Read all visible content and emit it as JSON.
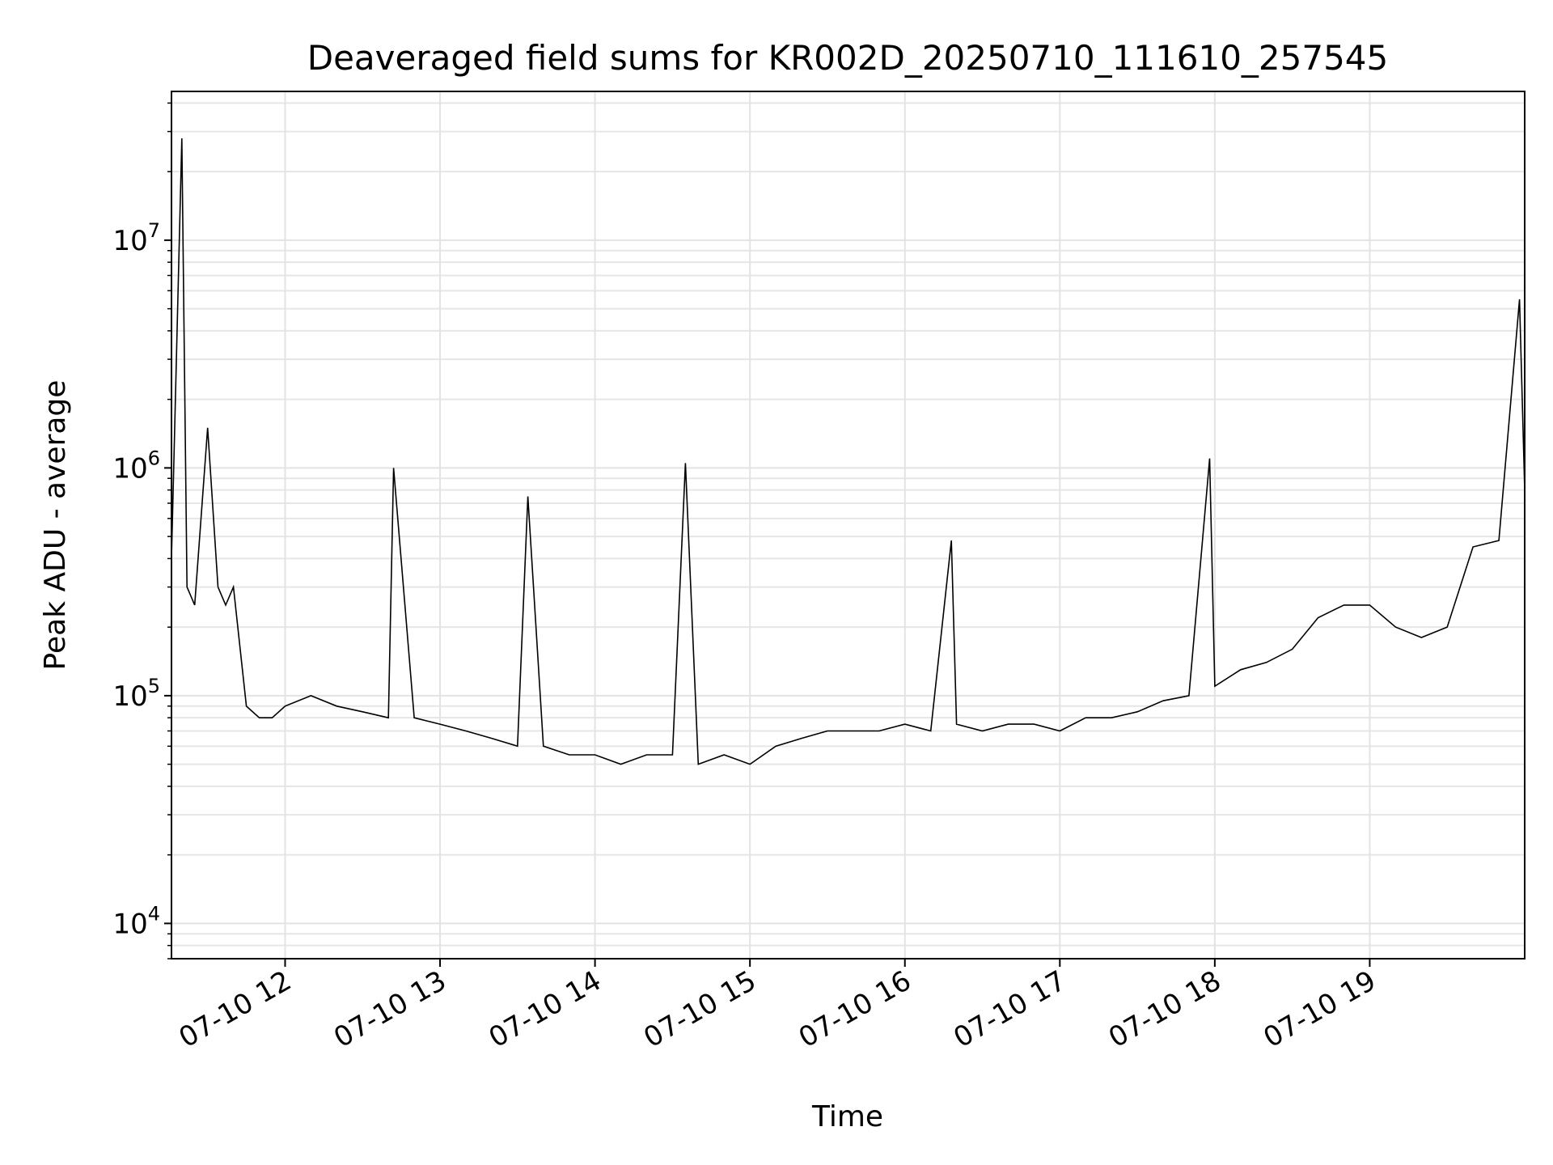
{
  "chart_data": {
    "type": "line",
    "title": "Deaveraged field sums for KR002D_20250710_111610_257545",
    "xlabel": "Time",
    "ylabel": "Peak ADU - average",
    "yscale": "log",
    "ylim": [
      7000,
      45000000
    ],
    "xlim": [
      "2025-07-10 11:16",
      "2025-07-10 20:00"
    ],
    "x_ticks": [
      "07-10 12",
      "07-10 13",
      "07-10 14",
      "07-10 15",
      "07-10 16",
      "07-10 17",
      "07-10 18",
      "07-10 19"
    ],
    "y_ticks": [
      {
        "base": "10",
        "exp": "4",
        "value": 10000
      },
      {
        "base": "10",
        "exp": "5",
        "value": 100000
      },
      {
        "base": "10",
        "exp": "6",
        "value": 1000000
      },
      {
        "base": "10",
        "exp": "7",
        "value": 10000000
      }
    ],
    "grid": true,
    "line_color": "#000000",
    "series": [
      {
        "x": [
          "2025-07-10 11:16",
          "2025-07-10 11:20",
          "2025-07-10 11:22",
          "2025-07-10 11:25",
          "2025-07-10 11:30",
          "2025-07-10 11:34",
          "2025-07-10 11:37",
          "2025-07-10 11:40",
          "2025-07-10 11:45",
          "2025-07-10 11:50",
          "2025-07-10 11:55",
          "2025-07-10 12:00",
          "2025-07-10 12:10",
          "2025-07-10 12:20",
          "2025-07-10 12:30",
          "2025-07-10 12:40",
          "2025-07-10 12:42",
          "2025-07-10 12:50",
          "2025-07-10 13:00",
          "2025-07-10 13:10",
          "2025-07-10 13:20",
          "2025-07-10 13:30",
          "2025-07-10 13:34",
          "2025-07-10 13:40",
          "2025-07-10 13:50",
          "2025-07-10 14:00",
          "2025-07-10 14:10",
          "2025-07-10 14:20",
          "2025-07-10 14:30",
          "2025-07-10 14:35",
          "2025-07-10 14:40",
          "2025-07-10 14:50",
          "2025-07-10 15:00",
          "2025-07-10 15:10",
          "2025-07-10 15:20",
          "2025-07-10 15:30",
          "2025-07-10 15:40",
          "2025-07-10 15:50",
          "2025-07-10 16:00",
          "2025-07-10 16:10",
          "2025-07-10 16:18",
          "2025-07-10 16:20",
          "2025-07-10 16:30",
          "2025-07-10 16:40",
          "2025-07-10 16:50",
          "2025-07-10 17:00",
          "2025-07-10 17:10",
          "2025-07-10 17:20",
          "2025-07-10 17:30",
          "2025-07-10 17:40",
          "2025-07-10 17:50",
          "2025-07-10 17:58",
          "2025-07-10 18:00",
          "2025-07-10 18:10",
          "2025-07-10 18:20",
          "2025-07-10 18:30",
          "2025-07-10 18:40",
          "2025-07-10 18:50",
          "2025-07-10 19:00",
          "2025-07-10 19:10",
          "2025-07-10 19:20",
          "2025-07-10 19:30",
          "2025-07-10 19:40",
          "2025-07-10 19:50",
          "2025-07-10 19:58",
          "2025-07-10 20:00"
        ],
        "values": [
          400000,
          28000000,
          300000,
          250000,
          1500000,
          300000,
          250000,
          300000,
          90000,
          80000,
          80000,
          90000,
          100000,
          90000,
          85000,
          80000,
          1000000,
          80000,
          75000,
          70000,
          65000,
          60000,
          750000,
          60000,
          55000,
          55000,
          50000,
          55000,
          55000,
          1050000,
          50000,
          55000,
          50000,
          60000,
          65000,
          70000,
          70000,
          70000,
          75000,
          70000,
          480000,
          75000,
          70000,
          75000,
          75000,
          70000,
          80000,
          80000,
          85000,
          95000,
          100000,
          1100000,
          110000,
          130000,
          140000,
          160000,
          220000,
          250000,
          250000,
          200000,
          180000,
          200000,
          450000,
          480000,
          5500000,
          800000
        ]
      }
    ]
  }
}
